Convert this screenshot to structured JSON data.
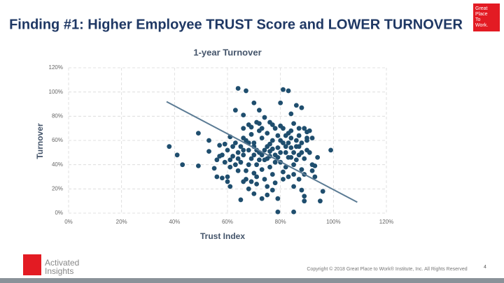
{
  "header": {
    "title": "Finding #1: Higher Employee TRUST Score and LOWER TURNOVER",
    "logo": [
      "Great",
      "Place",
      "To",
      "Work."
    ]
  },
  "chart_data": {
    "type": "scatter",
    "title": "1-year Turnover",
    "x_label": "Trust Index",
    "y_label": "Turnover",
    "color": "#1f4e6e",
    "grid": true,
    "xlim": [
      0,
      120
    ],
    "ylim": [
      0,
      120
    ],
    "xticks": [
      {
        "value": 0,
        "label": "0%"
      },
      {
        "value": 20,
        "label": "20%"
      },
      {
        "value": 40,
        "label": "40%"
      },
      {
        "value": 60,
        "label": "60%"
      },
      {
        "value": 80,
        "label": "80%"
      },
      {
        "value": 100,
        "label": "100%"
      },
      {
        "value": 120,
        "label": "120%"
      }
    ],
    "yticks": [
      {
        "value": 0,
        "label": "0%"
      },
      {
        "value": 20,
        "label": "20%"
      },
      {
        "value": 40,
        "label": "40%"
      },
      {
        "value": 60,
        "label": "60%"
      },
      {
        "value": 80,
        "label": "80%"
      },
      {
        "value": 100,
        "label": "100%"
      },
      {
        "value": 120,
        "label": "120%"
      }
    ],
    "x": [
      38,
      41,
      43,
      49,
      49,
      53,
      53,
      55,
      56,
      56,
      57,
      58,
      60,
      60,
      59,
      61,
      61,
      61,
      63,
      64,
      65,
      67,
      66,
      70,
      72,
      74,
      77,
      79,
      80,
      81,
      83,
      84,
      86,
      88,
      79,
      85,
      87,
      89,
      89,
      93,
      94,
      95,
      96,
      99,
      92,
      93,
      91,
      90,
      88,
      85,
      75,
      70,
      73,
      68,
      66,
      64,
      62,
      66,
      68,
      72,
      76,
      80,
      84,
      87,
      90,
      64,
      65,
      66,
      67,
      68,
      69,
      70,
      71,
      72,
      73,
      74,
      75,
      76,
      77,
      78,
      79,
      80,
      81,
      82,
      83,
      84,
      85,
      86,
      87,
      88,
      89,
      90,
      65,
      67,
      69,
      71,
      73,
      75,
      77,
      79,
      81,
      83,
      85,
      87,
      63,
      66,
      68,
      70,
      72,
      74,
      76,
      78,
      80,
      82,
      84,
      86,
      88,
      90,
      91,
      64,
      66,
      70,
      72,
      74,
      76,
      78,
      80,
      82,
      84,
      86,
      88,
      70,
      73,
      76,
      79,
      82,
      85,
      62,
      60,
      58,
      57,
      59,
      61,
      63,
      67,
      69,
      71,
      75,
      78,
      81,
      83,
      89,
      92,
      69,
      71,
      73,
      77,
      81,
      85,
      89,
      92,
      75,
      77,
      71,
      68,
      83,
      87
    ],
    "values": [
      55,
      48,
      40,
      66,
      39,
      60,
      51,
      37,
      30,
      44,
      47,
      29,
      30,
      26,
      57,
      63,
      38,
      22,
      85,
      103,
      11,
      101,
      81,
      91,
      85,
      79,
      19,
      12,
      91,
      102,
      101,
      82,
      89,
      87,
      1,
      1,
      28,
      14,
      10,
      39,
      46,
      10,
      18,
      52,
      40,
      30,
      68,
      62,
      19,
      22,
      15,
      16,
      12,
      20,
      26,
      35,
      55,
      70,
      73,
      74,
      75,
      72,
      68,
      70,
      67,
      50,
      55,
      48,
      60,
      52,
      45,
      58,
      40,
      50,
      62,
      44,
      55,
      38,
      60,
      48,
      54,
      42,
      58,
      50,
      46,
      62,
      40,
      55,
      48,
      58,
      45,
      52,
      42,
      35,
      65,
      30,
      36,
      66,
      32,
      64,
      34,
      66,
      32,
      64,
      58,
      62,
      40,
      33,
      68,
      28,
      47,
      70,
      50,
      38,
      54,
      44,
      36,
      60,
      50,
      45,
      52,
      48,
      44,
      52,
      57,
      42,
      60,
      64,
      46,
      60,
      50,
      55,
      48,
      51,
      46,
      55,
      50,
      47,
      52,
      48,
      56,
      42,
      44,
      40,
      28,
      26,
      24,
      22,
      25,
      28,
      30,
      32,
      35,
      71,
      75,
      70,
      73,
      70,
      74,
      70,
      62,
      45,
      53,
      52,
      58,
      58,
      55
    ],
    "trendline": {
      "x": [
        37,
        109
      ],
      "values": [
        92,
        9
      ],
      "color": "#5b7b94"
    }
  },
  "footer": {
    "brand": [
      "Activated",
      "Insights"
    ],
    "copyright": "Copyright © 2018 Great Place to Work® Institute, Inc. All Rights Reserved",
    "page": "4"
  }
}
